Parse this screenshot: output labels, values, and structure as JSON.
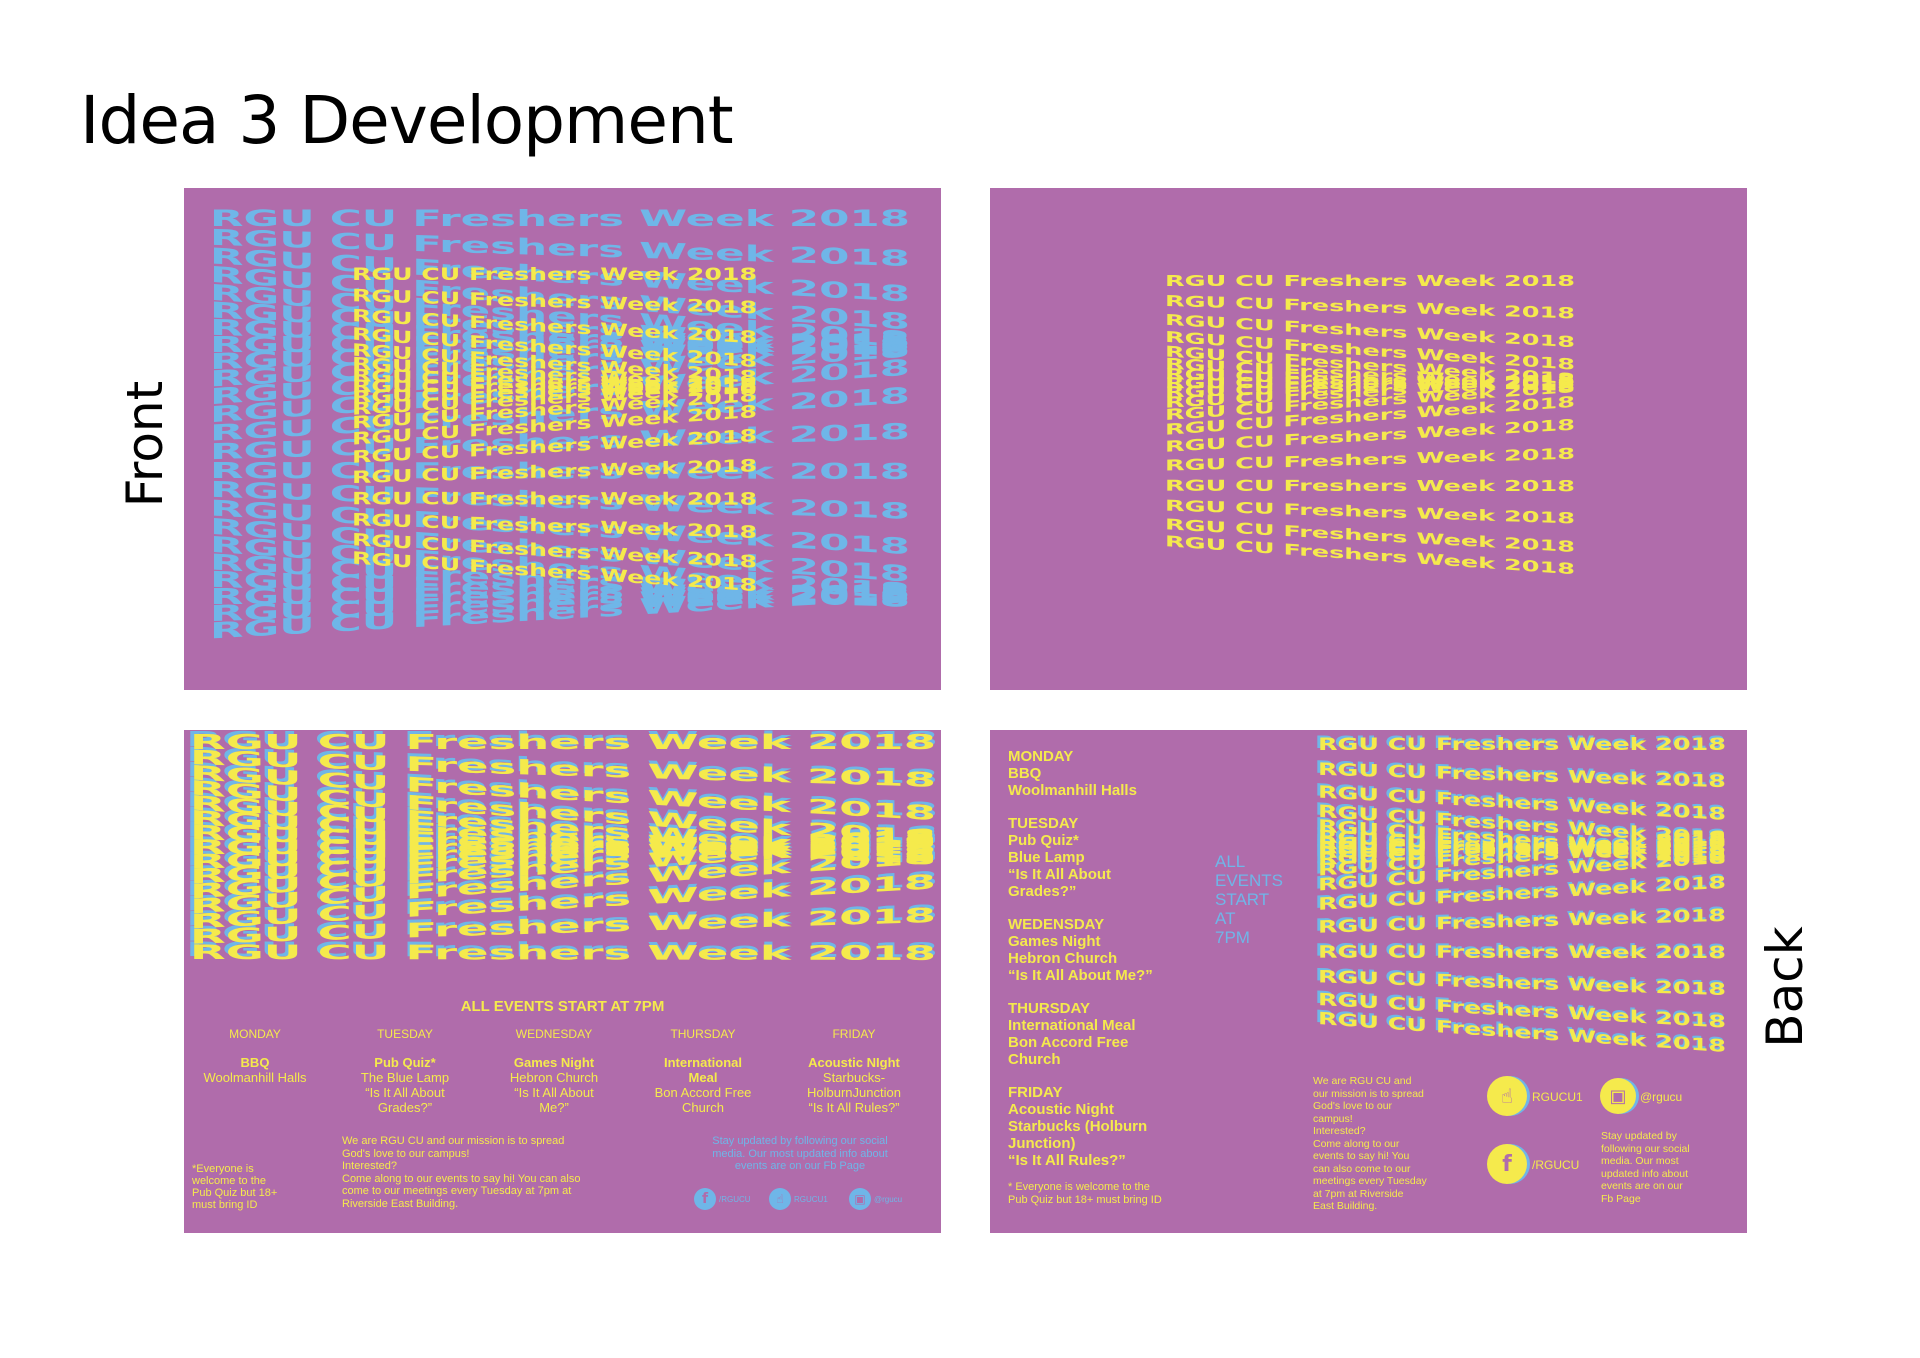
{
  "page_title": "Idea 3 Development",
  "side_labels": {
    "front": "Front",
    "back": "Back"
  },
  "wave_text": "RGU CU Freshers Week 2018",
  "colors": {
    "panel": "#b06cab",
    "yellow": "#f5ea4c",
    "blue": "#6fb6e8"
  },
  "front_inside": {
    "headline": "ALL EVENTS START AT 7PM",
    "days": [
      {
        "day": "MONDAY",
        "event": "BBQ",
        "lines": [
          "Woolmanhill Halls"
        ]
      },
      {
        "day": "TUESDAY",
        "event": "Pub Quiz*",
        "lines": [
          "The Blue Lamp",
          "“Is It All About",
          "Grades?”"
        ]
      },
      {
        "day": "WEDNESDAY",
        "event": "Games Night",
        "lines": [
          "Hebron Church",
          "“Is It All About",
          "Me?”"
        ]
      },
      {
        "day": "THURSDAY",
        "event": "International",
        "event2": "Meal",
        "lines": [
          "Bon Accord Free",
          "Church"
        ]
      },
      {
        "day": "FRIDAY",
        "event": "Acoustic NIght",
        "lines": [
          "Starbucks-",
          "HolburnJunction",
          "“Is It All Rules?”"
        ]
      }
    ],
    "footnote": [
      "*Everyone is",
      "welcome to the",
      "Pub Quiz but 18+",
      "must bring ID"
    ],
    "mission": [
      "We are RGU CU and our mission is to spread",
      "God's love to our campus!",
      "Interested?",
      "Come along to our events to say hi! You can also",
      "come to our meetings every Tuesday at 7pm at",
      "Riverside East Building."
    ],
    "social_text": [
      "Stay updated by following our social",
      "media.  Our most updated info about",
      "events are on our Fb Page"
    ],
    "social": {
      "fb": "/RGUCU",
      "snap": "RGUCU1",
      "insta": "@rgucu"
    }
  },
  "back_inside": {
    "days": [
      {
        "day": "MONDAY",
        "lines": [
          "BBQ",
          "Woolmanhill Halls"
        ]
      },
      {
        "day": "TUESDAY",
        "lines": [
          "Pub Quiz*",
          "Blue Lamp",
          "“Is It All About",
          "Grades?”"
        ]
      },
      {
        "day": "WEDENSDAY",
        "lines": [
          "Games Night",
          "Hebron  Church",
          "“Is It All About Me?”"
        ]
      },
      {
        "day": "THURSDAY",
        "lines": [
          "International Meal",
          "Bon Accord Free",
          "Church"
        ]
      },
      {
        "day": "FRIDAY",
        "lines": [
          "Acoustic Night",
          "Starbucks (Holburn",
          "Junction)",
          "“Is It All Rules?”"
        ]
      }
    ],
    "footnote": [
      "* Everyone is welcome to the",
      "Pub Quiz but 18+ must bring ID"
    ],
    "all_events": [
      "ALL",
      "EVENTS",
      "START",
      "AT",
      "7PM"
    ],
    "mission": [
      "We are RGU CU and",
      "our mission is to spread",
      "God's love to our",
      "campus!",
      "Interested?",
      "Come along to our",
      "events to say hi! You",
      "can also come to our",
      "meetings every Tuesday",
      "at 7pm at Riverside",
      "East Building."
    ],
    "social": {
      "snap": "RGUCU1",
      "insta": "@rgucu",
      "fb": "/RGUCU"
    },
    "social_text": [
      "Stay updated by",
      "following our social",
      "media.  Our most",
      "updated info about",
      "events are on our",
      "Fb Page"
    ]
  }
}
